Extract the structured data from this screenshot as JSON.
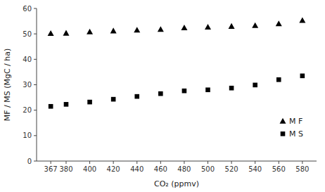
{
  "chart_data": {
    "type": "scatter",
    "x": [
      367,
      380,
      400,
      420,
      440,
      460,
      480,
      500,
      520,
      540,
      560,
      580
    ],
    "series": [
      {
        "name": "M F",
        "color": "#000000",
        "marker": "triangle",
        "values": [
          50.2,
          50.3,
          50.8,
          51.2,
          51.5,
          51.8,
          52.4,
          52.7,
          53.0,
          53.3,
          54.0,
          55.3
        ]
      },
      {
        "name": "M S",
        "color": "#000000",
        "marker": "square",
        "values": [
          21.5,
          22.3,
          23.2,
          24.3,
          25.4,
          26.5,
          27.6,
          28.0,
          28.7,
          29.9,
          32.0,
          33.5
        ]
      }
    ],
    "xlabel": "CO₂ (ppmv)",
    "ylabel": "MF / MS (MgC / ha)",
    "xlim": [
      355,
      592
    ],
    "ylim": [
      0,
      60
    ],
    "xticks": [
      367,
      380,
      400,
      420,
      440,
      460,
      480,
      500,
      520,
      540,
      560,
      580
    ],
    "yticks": [
      0,
      10,
      20,
      30,
      40,
      50,
      60
    ],
    "grid": false,
    "legend": "right"
  }
}
